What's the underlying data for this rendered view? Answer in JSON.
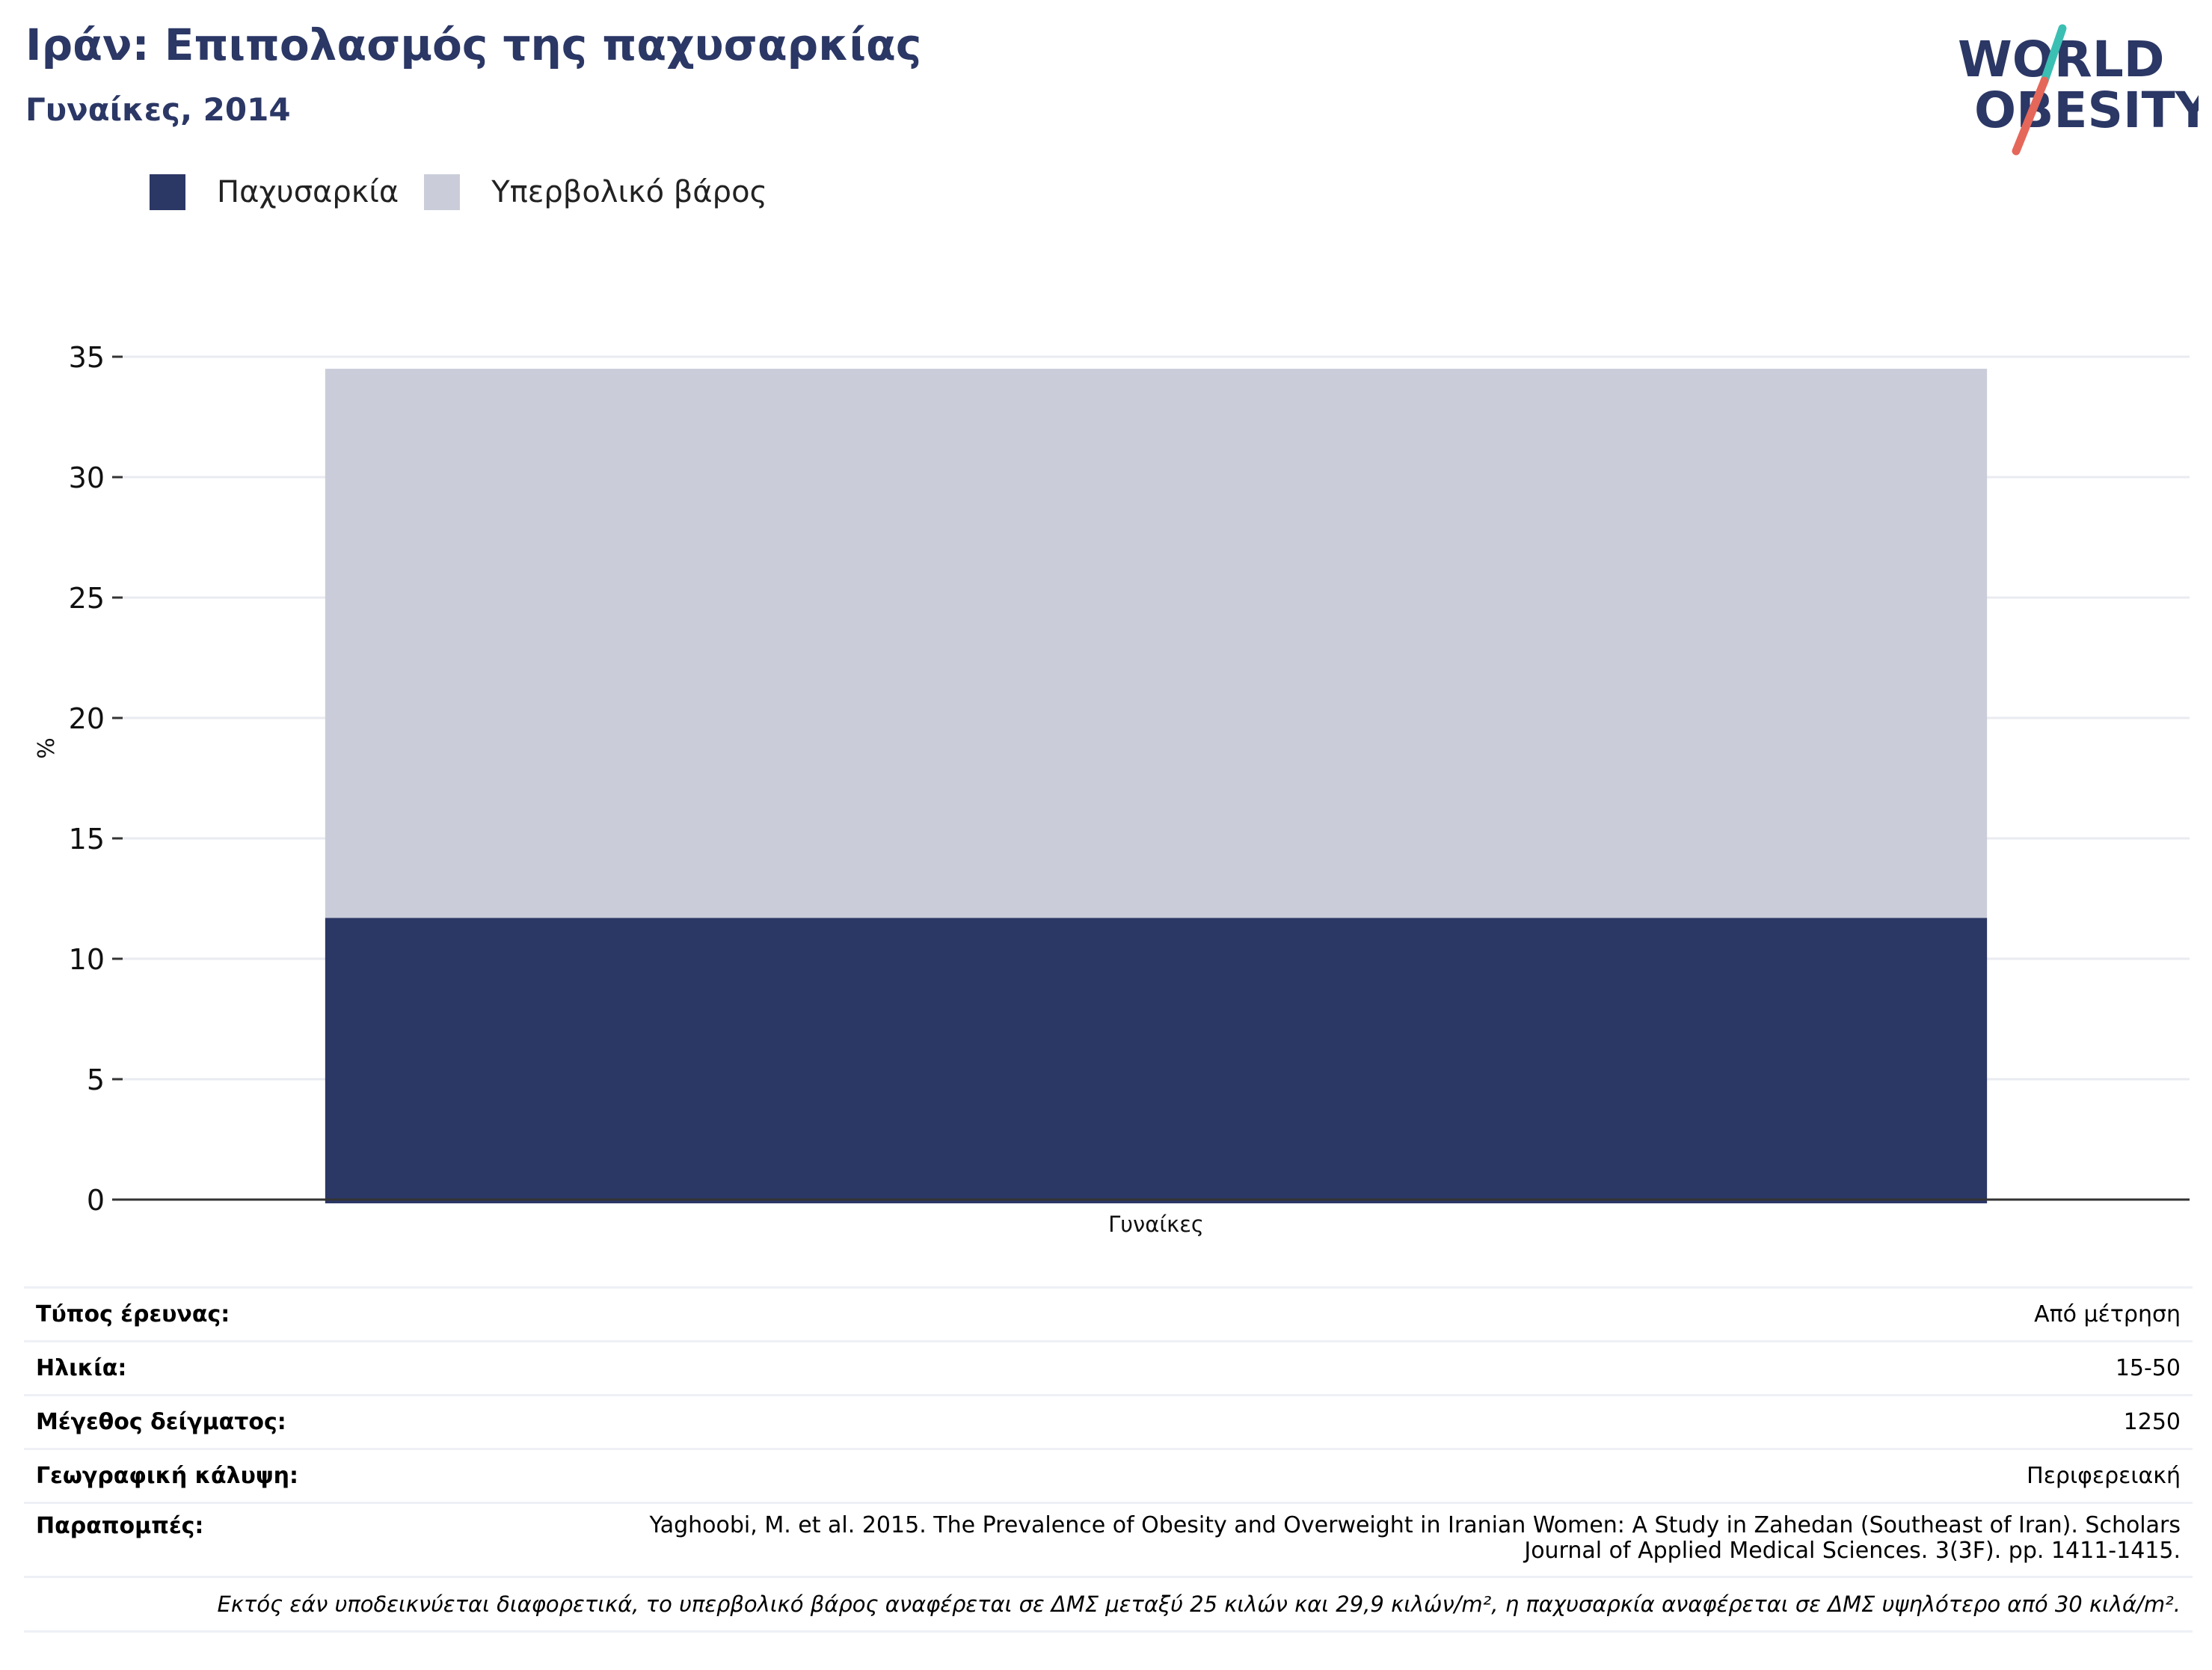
{
  "header": {
    "title": "Ιράν: Επιπολασμός της παχυσαρκίας",
    "subtitle": "Γυναίκες, 2014"
  },
  "logo": {
    "line1": "WORLD",
    "line2": "OBESITY"
  },
  "colors": {
    "obesity": "#2b3765",
    "overweight": "#cacdd9",
    "grid": "#e9ebf1",
    "axis": "#333333",
    "title": "#2b3765",
    "logo_teal": "#3bbfb3",
    "logo_coral": "#e5675a"
  },
  "legend": [
    {
      "label": "Παχυσαρκία",
      "color": "#2b3765"
    },
    {
      "label": "Υπερβολικό βάρος",
      "color": "#cacdd9"
    }
  ],
  "chart_data": {
    "type": "bar",
    "stacked": true,
    "categories": [
      "Γυναίκες"
    ],
    "series": [
      {
        "name": "Παχυσαρκία",
        "values": [
          11.7
        ]
      },
      {
        "name": "Υπερβολικό βάρος",
        "values": [
          22.8
        ]
      }
    ],
    "ylabel": "%",
    "ylim": [
      0,
      35
    ],
    "yticks": [
      0,
      5,
      10,
      15,
      20,
      25,
      30,
      35
    ],
    "grid": true,
    "legend_position": "top-left"
  },
  "meta": {
    "rows": [
      {
        "label": "Τύπος έρευνας:",
        "value": "Από μέτρηση"
      },
      {
        "label": "Ηλικία:",
        "value": "15-50"
      },
      {
        "label": "Μέγεθος δείγματος:",
        "value": "1250"
      },
      {
        "label": "Γεωγραφική κάλυψη:",
        "value": "Περιφερειακή"
      }
    ],
    "refs_label": "Παραπομπές:",
    "refs_value": "Yaghoobi, M. et al. 2015. The Prevalence of Obesity and Overweight in Iranian Women: A Study in Zahedan (Southeast of Iran). Scholars Journal of Applied Medical Sciences. 3(3F). pp. 1411-1415.",
    "note": "Εκτός εάν υποδεικνύεται διαφορετικά, το υπερβολικό βάρος αναφέρεται σε ΔΜΣ μεταξύ 25 κιλών και 29,9 κιλών/m², η παχυσαρκία αναφέρεται σε ΔΜΣ υψηλότερο από 30 κιλά/m²."
  }
}
